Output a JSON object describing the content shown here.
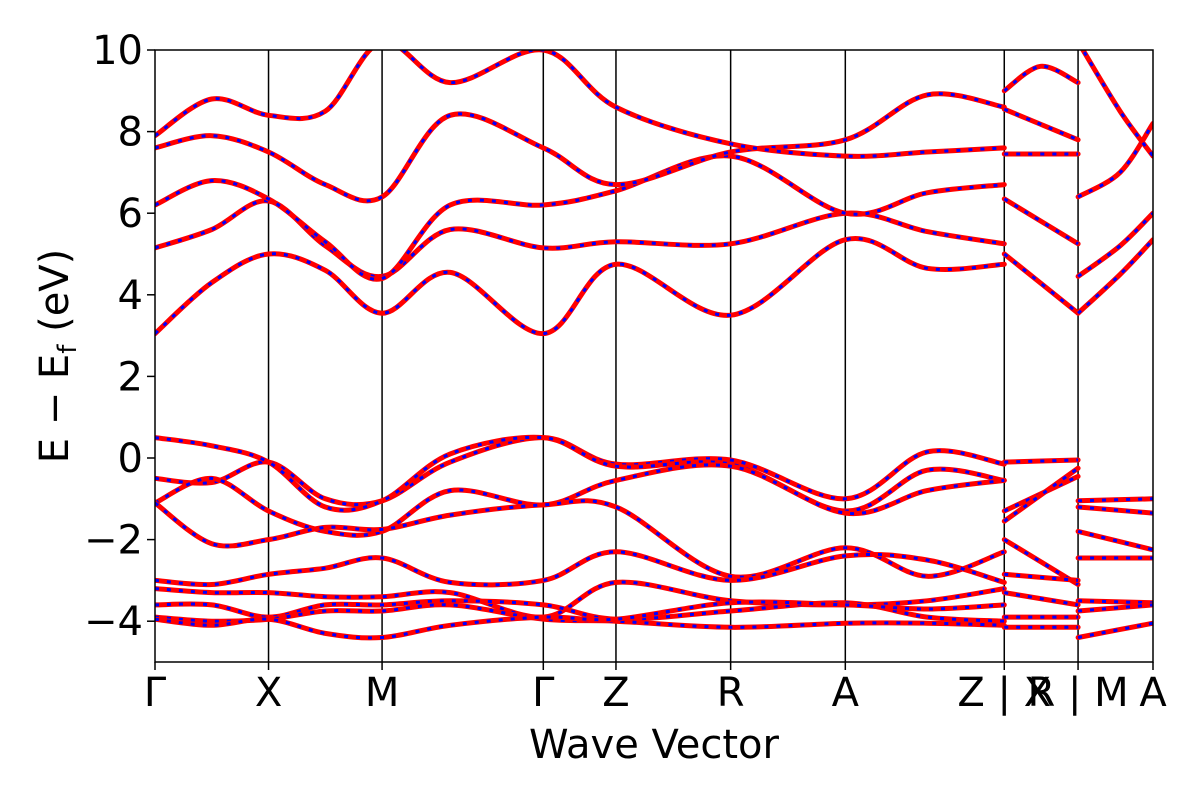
{
  "chart_data": {
    "type": "line",
    "title": "",
    "xlabel": "Wave Vector",
    "ylabel": "E − E",
    "ylabel_sub": "f",
    "ylabel_unit": " (eV)",
    "ylim": [
      -5,
      10
    ],
    "yticks": [
      -4,
      -2,
      0,
      2,
      4,
      6,
      8,
      10
    ],
    "ytick_labels": [
      "−4",
      "−2",
      "0",
      "2",
      "4",
      "6",
      "8",
      "10"
    ],
    "x_path_positions": [
      0,
      1,
      2,
      3.42,
      4.06,
      5.07,
      6.08,
      7.48,
      8.13,
      8.79
    ],
    "xtick_labels": [
      "Γ",
      "X",
      "M",
      "Γ",
      "Z",
      "R",
      "A",
      "Z | X",
      "R | M",
      "A"
    ],
    "grid": false,
    "colors": {
      "spin_up": "#ff0000",
      "spin_down": "#0000ff",
      "kpath_lines": "#000000"
    },
    "series": [
      {
        "points": [
          [
            0,
            3.05
          ],
          [
            0.5,
            4.3
          ],
          [
            1,
            5.0
          ],
          [
            1.5,
            4.6
          ],
          [
            2,
            3.55
          ],
          [
            2.6,
            4.55
          ],
          [
            3.42,
            3.05
          ],
          [
            4.06,
            4.75
          ],
          [
            5.07,
            3.5
          ],
          [
            6.08,
            5.35
          ],
          [
            6.8,
            4.65
          ],
          [
            7.48,
            4.75
          ]
        ]
      },
      {
        "points": [
          [
            0,
            5.15
          ],
          [
            0.5,
            5.6
          ],
          [
            1,
            6.3
          ],
          [
            1.5,
            5.2
          ],
          [
            2,
            4.45
          ],
          [
            2.6,
            5.6
          ],
          [
            3.42,
            5.15
          ],
          [
            4.06,
            5.3
          ],
          [
            5.07,
            5.25
          ],
          [
            6.08,
            6.0
          ],
          [
            6.8,
            5.55
          ],
          [
            7.48,
            5.25
          ]
        ]
      },
      {
        "points": [
          [
            0,
            6.2
          ],
          [
            0.5,
            6.8
          ],
          [
            1,
            6.35
          ],
          [
            1.5,
            5.3
          ],
          [
            2,
            4.4
          ],
          [
            2.6,
            6.2
          ],
          [
            3.42,
            6.2
          ],
          [
            4.06,
            6.55
          ],
          [
            5.07,
            7.4
          ],
          [
            6.08,
            6.0
          ],
          [
            6.8,
            6.5
          ],
          [
            7.48,
            6.7
          ]
        ]
      },
      {
        "points": [
          [
            0,
            7.6
          ],
          [
            0.5,
            7.9
          ],
          [
            1,
            7.5
          ],
          [
            1.5,
            6.7
          ],
          [
            2,
            6.4
          ],
          [
            2.6,
            8.4
          ],
          [
            3.42,
            7.6
          ],
          [
            4.06,
            6.7
          ],
          [
            5.07,
            7.5
          ],
          [
            6.08,
            7.8
          ],
          [
            6.8,
            8.9
          ],
          [
            7.48,
            8.6
          ]
        ]
      },
      {
        "points": [
          [
            0,
            7.9
          ],
          [
            0.5,
            8.8
          ],
          [
            1,
            8.4
          ],
          [
            1.5,
            8.5
          ],
          [
            2,
            10.2
          ],
          [
            2.6,
            9.2
          ],
          [
            3.42,
            10.0
          ],
          [
            4.06,
            8.6
          ],
          [
            5.07,
            7.7
          ],
          [
            6.08,
            7.4
          ],
          [
            6.8,
            7.5
          ],
          [
            7.48,
            7.6
          ]
        ]
      },
      {
        "points": [
          [
            0,
            -0.5
          ],
          [
            0.5,
            -0.6
          ],
          [
            1,
            -0.1
          ],
          [
            1.5,
            -1.0
          ],
          [
            2,
            -1.05
          ],
          [
            2.6,
            -0.1
          ],
          [
            3.42,
            0.5
          ],
          [
            4.06,
            -0.15
          ],
          [
            5.07,
            -0.05
          ],
          [
            6.08,
            -1.0
          ],
          [
            6.8,
            0.15
          ],
          [
            7.48,
            -0.15
          ]
        ]
      },
      {
        "points": [
          [
            0,
            0.5
          ],
          [
            0.5,
            0.3
          ],
          [
            1,
            -0.1
          ],
          [
            1.5,
            -1.2
          ],
          [
            2,
            -1.05
          ],
          [
            2.6,
            0.1
          ],
          [
            3.42,
            0.5
          ],
          [
            4.06,
            -0.2
          ],
          [
            5.07,
            -0.15
          ],
          [
            6.08,
            -1.3
          ],
          [
            6.8,
            -0.3
          ],
          [
            7.48,
            -0.55
          ]
        ]
      },
      {
        "points": [
          [
            0,
            -1.1
          ],
          [
            0.5,
            -0.5
          ],
          [
            1,
            -1.3
          ],
          [
            1.5,
            -1.8
          ],
          [
            2,
            -1.8
          ],
          [
            2.6,
            -0.8
          ],
          [
            3.42,
            -1.15
          ],
          [
            4.06,
            -0.55
          ],
          [
            5.07,
            -0.2
          ],
          [
            6.08,
            -1.35
          ],
          [
            6.8,
            -0.8
          ],
          [
            7.48,
            -0.55
          ]
        ]
      },
      {
        "points": [
          [
            0,
            -1.1
          ],
          [
            0.5,
            -2.1
          ],
          [
            1,
            -2.0
          ],
          [
            1.5,
            -1.7
          ],
          [
            2,
            -1.75
          ],
          [
            2.6,
            -1.4
          ],
          [
            3.42,
            -1.15
          ],
          [
            4.06,
            -1.2
          ],
          [
            5.07,
            -2.9
          ],
          [
            6.08,
            -2.2
          ],
          [
            6.8,
            -2.9
          ],
          [
            7.48,
            -2.3
          ]
        ]
      },
      {
        "points": [
          [
            0,
            -3.0
          ],
          [
            0.5,
            -3.1
          ],
          [
            1,
            -2.85
          ],
          [
            1.5,
            -2.7
          ],
          [
            2,
            -2.45
          ],
          [
            2.6,
            -3.05
          ],
          [
            3.42,
            -3.0
          ],
          [
            4.06,
            -2.3
          ],
          [
            5.07,
            -3.0
          ],
          [
            6.08,
            -2.4
          ],
          [
            6.8,
            -2.5
          ],
          [
            7.48,
            -3.05
          ]
        ]
      },
      {
        "points": [
          [
            0,
            -3.2
          ],
          [
            0.5,
            -3.3
          ],
          [
            1,
            -3.3
          ],
          [
            1.5,
            -3.4
          ],
          [
            2,
            -3.4
          ],
          [
            2.6,
            -3.3
          ],
          [
            3.42,
            -3.9
          ],
          [
            4.06,
            -3.05
          ],
          [
            5.07,
            -3.5
          ],
          [
            6.08,
            -3.6
          ],
          [
            6.8,
            -3.5
          ],
          [
            7.48,
            -3.2
          ]
        ]
      },
      {
        "points": [
          [
            0,
            -3.6
          ],
          [
            0.5,
            -3.6
          ],
          [
            1,
            -3.9
          ],
          [
            1.5,
            -3.6
          ],
          [
            2,
            -3.6
          ],
          [
            2.6,
            -3.5
          ],
          [
            3.42,
            -3.6
          ],
          [
            4.06,
            -3.95
          ],
          [
            5.07,
            -3.75
          ],
          [
            6.08,
            -3.55
          ],
          [
            6.8,
            -3.9
          ],
          [
            7.48,
            -4.0
          ]
        ]
      },
      {
        "points": [
          [
            0,
            -3.9
          ],
          [
            0.5,
            -4.0
          ],
          [
            1,
            -3.95
          ],
          [
            1.5,
            -3.75
          ],
          [
            2,
            -3.75
          ],
          [
            2.6,
            -3.6
          ],
          [
            3.42,
            -3.95
          ],
          [
            4.06,
            -4.0
          ],
          [
            5.07,
            -4.15
          ],
          [
            6.08,
            -4.05
          ],
          [
            6.8,
            -4.05
          ],
          [
            7.48,
            -4.1
          ]
        ]
      },
      {
        "points": [
          [
            0,
            -3.95
          ],
          [
            0.5,
            -4.1
          ],
          [
            1,
            -3.95
          ],
          [
            1.5,
            -4.3
          ],
          [
            2,
            -4.4
          ],
          [
            2.6,
            -4.1
          ],
          [
            3.42,
            -3.9
          ],
          [
            4.06,
            -3.95
          ],
          [
            5.07,
            -3.55
          ],
          [
            6.08,
            -3.6
          ],
          [
            6.8,
            -3.7
          ],
          [
            7.48,
            -3.6
          ]
        ]
      },
      {
        "points": [
          [
            7.48,
            5.0
          ],
          [
            8.13,
            3.55
          ]
        ]
      },
      {
        "points": [
          [
            7.48,
            6.35
          ],
          [
            8.13,
            5.25
          ]
        ]
      },
      {
        "points": [
          [
            7.48,
            7.45
          ],
          [
            8.13,
            7.45
          ]
        ]
      },
      {
        "points": [
          [
            7.48,
            8.55
          ],
          [
            8.13,
            7.8
          ]
        ]
      },
      {
        "points": [
          [
            7.48,
            9.0
          ],
          [
            7.8,
            9.6
          ],
          [
            8.13,
            9.2
          ]
        ]
      },
      {
        "points": [
          [
            7.48,
            -0.1
          ],
          [
            8.13,
            -0.05
          ]
        ]
      },
      {
        "points": [
          [
            7.48,
            -1.3
          ],
          [
            8.13,
            -0.45
          ]
        ]
      },
      {
        "points": [
          [
            7.48,
            -1.55
          ],
          [
            8.13,
            -0.25
          ]
        ]
      },
      {
        "points": [
          [
            7.48,
            -2.0
          ],
          [
            8.13,
            -3.1
          ]
        ]
      },
      {
        "points": [
          [
            7.48,
            -2.85
          ],
          [
            8.13,
            -3.0
          ]
        ]
      },
      {
        "points": [
          [
            7.48,
            -3.3
          ],
          [
            8.13,
            -3.6
          ]
        ]
      },
      {
        "points": [
          [
            7.48,
            -3.9
          ],
          [
            8.13,
            -3.9
          ]
        ]
      },
      {
        "points": [
          [
            7.48,
            -4.15
          ],
          [
            8.13,
            -4.15
          ]
        ]
      },
      {
        "points": [
          [
            8.13,
            3.55
          ],
          [
            8.5,
            4.5
          ],
          [
            8.79,
            5.35
          ]
        ]
      },
      {
        "points": [
          [
            8.13,
            4.45
          ],
          [
            8.5,
            5.2
          ],
          [
            8.79,
            6.0
          ]
        ]
      },
      {
        "points": [
          [
            8.13,
            6.4
          ],
          [
            8.5,
            7.0
          ],
          [
            8.79,
            8.2
          ]
        ]
      },
      {
        "points": [
          [
            8.13,
            10.2
          ],
          [
            8.5,
            8.5
          ],
          [
            8.79,
            7.4
          ]
        ]
      },
      {
        "points": [
          [
            8.13,
            -1.05
          ],
          [
            8.79,
            -1.0
          ]
        ]
      },
      {
        "points": [
          [
            8.13,
            -1.2
          ],
          [
            8.79,
            -1.35
          ]
        ]
      },
      {
        "points": [
          [
            8.13,
            -1.8
          ],
          [
            8.79,
            -2.25
          ]
        ]
      },
      {
        "points": [
          [
            8.13,
            -2.45
          ],
          [
            8.79,
            -2.45
          ]
        ]
      },
      {
        "points": [
          [
            8.13,
            -3.5
          ],
          [
            8.79,
            -3.55
          ]
        ]
      },
      {
        "points": [
          [
            8.13,
            -3.75
          ],
          [
            8.79,
            -3.6
          ]
        ]
      },
      {
        "points": [
          [
            8.13,
            -4.4
          ],
          [
            8.79,
            -4.05
          ]
        ]
      }
    ]
  }
}
